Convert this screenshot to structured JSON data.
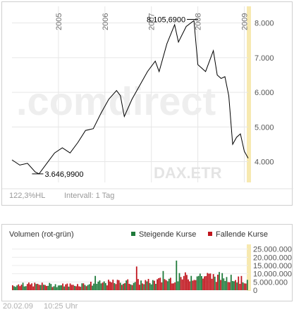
{
  "price_chart": {
    "title": "",
    "high_label": "8.105,6900",
    "low_label": "3.646,9900",
    "watermark": ".comdirect",
    "instrument": "DAX.ETR",
    "range_label": "122,3%HL",
    "interval_label": "Intervall: 1 Tag",
    "year_labels": [
      "2005",
      "2006",
      "2007",
      "2008",
      "2009"
    ],
    "colors": {
      "line": "#000000",
      "grid": "#e6e6e6",
      "highlight": "#f7e9b0",
      "text": "#6e6e6e",
      "watermark": "#eeeeee"
    }
  },
  "volume_chart": {
    "title": "Volumen (rot-grün)",
    "legend_up": "Steigende Kurse",
    "legend_down": "Fallende Kurse",
    "colors": {
      "up": "#1f7a3a",
      "down": "#c0141c"
    }
  },
  "footer": {
    "date": "20.02.09",
    "time": "10:25 Uhr"
  },
  "chart_data": [
    {
      "type": "line",
      "title": "",
      "x": [
        "2004-01",
        "2004-03",
        "2004-05",
        "2004-07",
        "2004-08",
        "2004-10",
        "2004-12",
        "2005-02",
        "2005-04",
        "2005-06",
        "2005-08",
        "2005-10",
        "2005-12",
        "2006-02",
        "2006-04",
        "2006-05",
        "2006-06",
        "2006-08",
        "2006-10",
        "2006-12",
        "2007-02",
        "2007-03",
        "2007-05",
        "2007-07",
        "2007-08",
        "2007-10",
        "2007-12",
        "2008-01",
        "2008-03",
        "2008-05",
        "2008-06",
        "2008-07",
        "2008-08",
        "2008-09",
        "2008-10",
        "2008-11",
        "2008-12",
        "2009-01",
        "2009-02"
      ],
      "y": [
        4050,
        3900,
        3950,
        3700,
        3647,
        3950,
        4250,
        4400,
        4250,
        4550,
        4900,
        4950,
        5400,
        5800,
        6050,
        5900,
        5300,
        5800,
        6200,
        6600,
        6900,
        6600,
        7400,
        7950,
        7450,
        7900,
        8070,
        6800,
        6600,
        7200,
        6500,
        6400,
        6450,
        5900,
        4500,
        4700,
        4800,
        4300,
        4100
      ],
      "xlabel": "",
      "ylabel": "",
      "ylim": [
        3400,
        8400
      ],
      "yticks": [
        "4.000",
        "5.000",
        "6.000",
        "7.000",
        "8.000"
      ],
      "yticks_values": [
        4000,
        5000,
        6000,
        7000,
        8000
      ],
      "xticks": [
        "2005",
        "2006",
        "2007",
        "2008",
        "2009"
      ],
      "xticks_values": [
        "2005-01",
        "2006-01",
        "2007-01",
        "2008-01",
        "2009-01"
      ],
      "annotations": [
        {
          "x": "2007-12",
          "y": 8105.69,
          "text": "8.105,6900"
        },
        {
          "x": "2004-08",
          "y": 3646.99,
          "text": "3.646,9900"
        }
      ],
      "grid": true,
      "y_axis_position": "right"
    },
    {
      "type": "bar",
      "title": "Volumen (rot-grün)",
      "ylim": [
        0,
        27000000
      ],
      "yticks": [
        "0",
        "5.000.000",
        "10.000.000",
        "15.000.000",
        "20.000.000",
        "25.000.000"
      ],
      "yticks_values": [
        0,
        5000000,
        10000000,
        15000000,
        20000000,
        25000000
      ],
      "series": [
        {
          "name": "Steigende Kurse",
          "color": "#1f7a3a"
        },
        {
          "name": "Fallende Kurse",
          "color": "#c0141c"
        }
      ],
      "x": [
        "2004-01",
        "2004-07",
        "2005-01",
        "2005-07",
        "2006-01",
        "2006-07",
        "2007-01",
        "2007-07",
        "2008-01",
        "2008-07",
        "2009-01"
      ],
      "values": [
        3000000,
        3500000,
        3000000,
        3500000,
        4500000,
        5000000,
        5000000,
        7000000,
        9000000,
        8000000,
        6000000
      ],
      "grid": true,
      "legend": "top-right"
    }
  ]
}
